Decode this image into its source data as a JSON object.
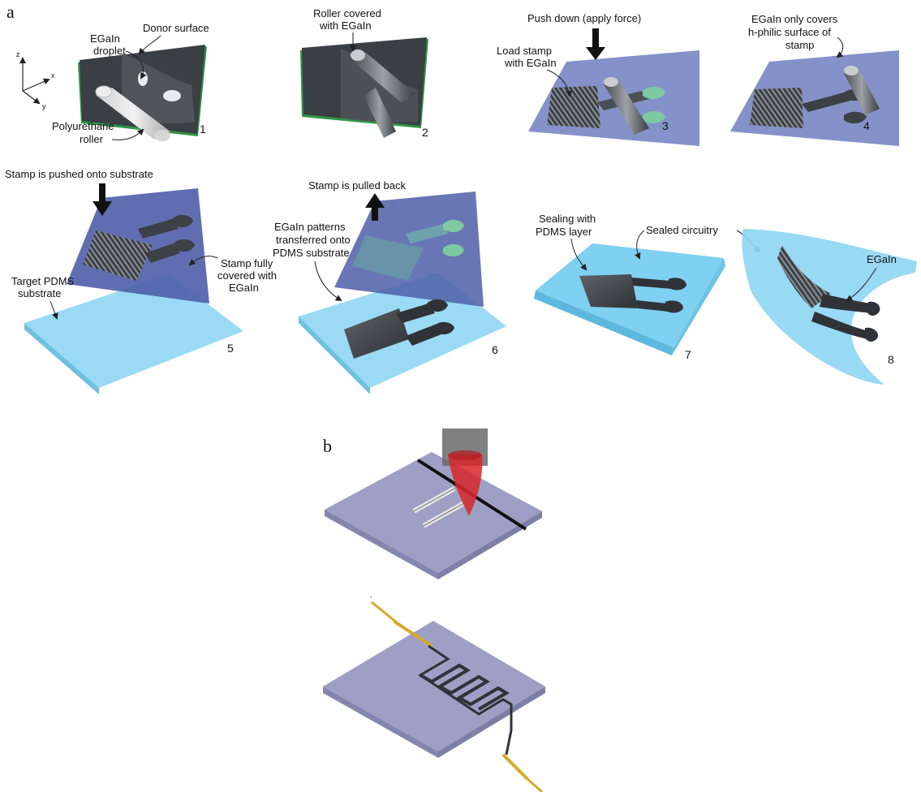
{
  "panel_a": {
    "letter": "a",
    "axes": {
      "z": "z",
      "x": "x",
      "y": "y"
    },
    "labels": {
      "egain_droplet": [
        "EGaIn",
        "droplet"
      ],
      "donor_surface": "Donor surface",
      "polyurethane_roller": [
        "Polyurethane",
        "roller"
      ],
      "roller_covered": [
        "Roller covered",
        "with EGaIn"
      ],
      "push_down": "Push down (apply force)",
      "load_stamp": [
        "Load stamp",
        "with EGaIn"
      ],
      "egain_covers": [
        "EGaIn only covers",
        "h-philic surface of",
        "stamp"
      ],
      "stamp_pushed": "Stamp is pushed onto substrate",
      "target_pdms": [
        "Target PDMS",
        "substrate"
      ],
      "stamp_fully_covered": [
        "Stamp fully",
        "covered with",
        "EGaIn"
      ],
      "stamp_pulled": "Stamp is pulled back",
      "patterns_transferred": [
        "EGaIn patterns",
        "transferred onto",
        "PDMS substrate"
      ],
      "sealing": [
        "Sealing with",
        "PDMS layer"
      ],
      "sealed_circuitry": "Sealed circuitry",
      "egain": "EGaIn"
    },
    "steps": [
      "1",
      "2",
      "3",
      "4",
      "5",
      "6",
      "7",
      "8"
    ]
  },
  "panel_b": {
    "letter": "b"
  },
  "colors": {
    "stamp": "#6f7fc0",
    "pdms": "#8fd6f3",
    "donor_green": "#3d9a4c",
    "metal": "#3c4146",
    "plate": "#9d9fc4",
    "laser": "#d8262a",
    "wire": "#d7a92c"
  }
}
